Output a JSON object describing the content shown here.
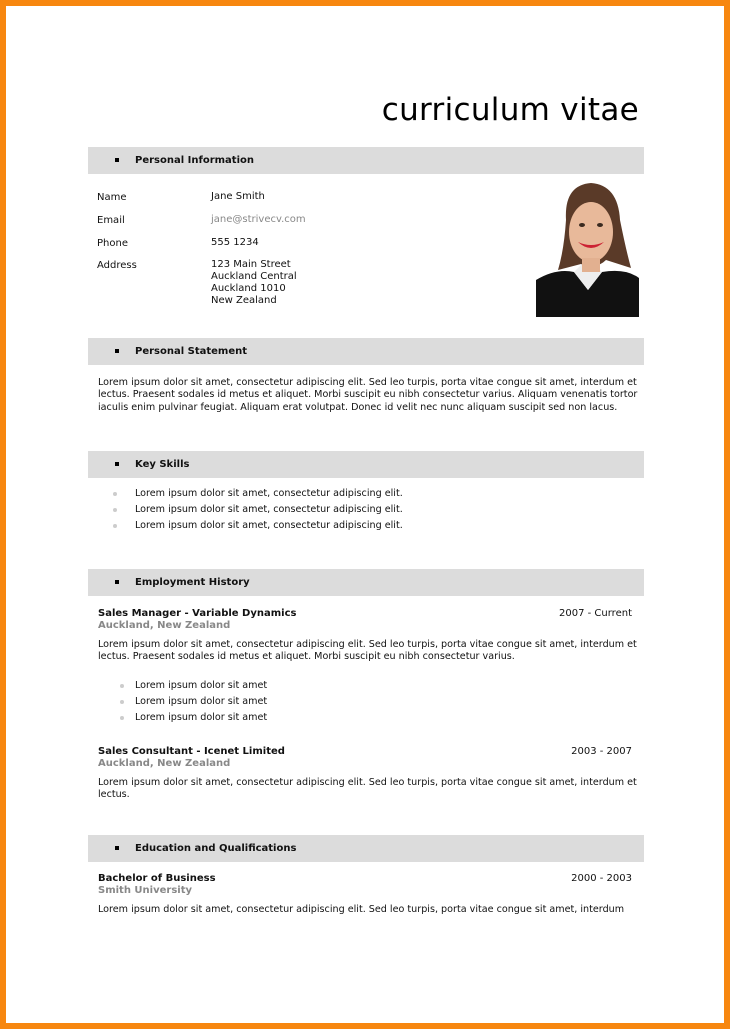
{
  "title": "curriculum vitae",
  "sections": {
    "personal": "Personal Information",
    "statement": "Personal Statement",
    "skills": "Key Skills",
    "employment": "Employment History",
    "education": "Education and Qualifications"
  },
  "personal": {
    "name_label": "Name",
    "name": "Jane Smith",
    "email_label": "Email",
    "email": "jane@strivecv.com",
    "phone_label": "Phone",
    "phone": "555 1234",
    "address_label": "Address",
    "address": [
      "123 Main Street",
      "Auckland Central",
      "Auckland 1010",
      "New Zealand"
    ]
  },
  "statement": "Lorem ipsum dolor sit amet, consectetur adipiscing elit. Sed leo turpis, porta vitae congue sit amet, interdum et lectus. Praesent sodales id metus et aliquet. Morbi suscipit eu nibh consectetur varius. Aliquam venenatis tortor iaculis enim pulvinar feugiat. Aliquam erat volutpat. Donec id velit nec nunc aliquam suscipit sed non lacus.",
  "skills": [
    "Lorem ipsum dolor sit amet, consectetur adipiscing elit.",
    "Lorem ipsum dolor sit amet, consectetur adipiscing elit.",
    "Lorem ipsum dolor sit amet, consectetur adipiscing elit."
  ],
  "jobs": [
    {
      "title": "Sales Manager - Variable Dynamics",
      "location": "Auckland, New Zealand",
      "dates": "2007 - Current",
      "desc": "Lorem ipsum dolor sit amet, consectetur adipiscing elit. Sed leo turpis, porta vitae congue sit amet, interdum et lectus. Praesent sodales id metus et aliquet. Morbi suscipit eu nibh consectetur varius.",
      "bullets": [
        "Lorem ipsum dolor sit amet",
        "Lorem ipsum dolor sit amet",
        "Lorem ipsum dolor sit amet"
      ]
    },
    {
      "title": "Sales Consultant - Icenet Limited",
      "location": "Auckland, New Zealand",
      "dates": "2003 - 2007",
      "desc": "Lorem ipsum dolor sit amet, consectetur adipiscing elit. Sed leo turpis, porta vitae congue sit amet, interdum et lectus."
    }
  ],
  "education": [
    {
      "title": "Bachelor of Business",
      "institution": "Smith University",
      "dates": "2000 - 2003",
      "desc": "Lorem ipsum dolor sit amet, consectetur adipiscing elit. Sed leo turpis, porta vitae congue sit amet, interdum"
    }
  ]
}
